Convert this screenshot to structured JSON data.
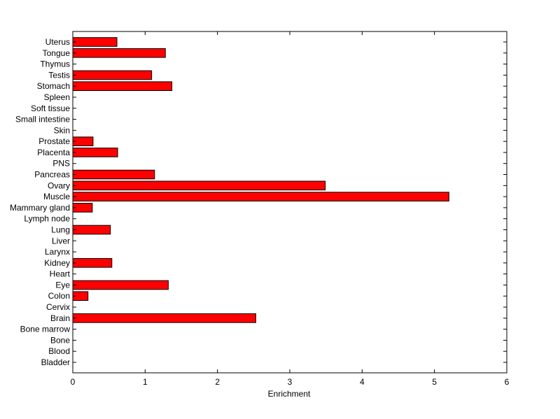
{
  "chart_data": {
    "type": "bar",
    "orientation": "horizontal",
    "title": "",
    "xlabel": "Enrichment",
    "ylabel": "",
    "xlim": [
      0,
      6
    ],
    "xticks": [
      0,
      1,
      2,
      3,
      4,
      5,
      6
    ],
    "grid": false,
    "bar_color": "#ff0000",
    "bar_edge_color": "#000000",
    "categories": [
      "Bladder",
      "Blood",
      "Bone",
      "Bone marrow",
      "Brain",
      "Cervix",
      "Colon",
      "Eye",
      "Heart",
      "Kidney",
      "Larynx",
      "Liver",
      "Lung",
      "Lymph node",
      "Mammary gland",
      "Muscle",
      "Ovary",
      "Pancreas",
      "PNS",
      "Placenta",
      "Prostate",
      "Skin",
      "Small intestine",
      "Soft tissue",
      "Spleen",
      "Stomach",
      "Testis",
      "Thymus",
      "Tongue",
      "Uterus"
    ],
    "values": [
      0,
      0,
      0,
      0,
      2.53,
      0,
      0.21,
      1.32,
      0,
      0.54,
      0,
      0,
      0.52,
      0,
      0.27,
      5.2,
      3.49,
      1.13,
      0,
      0.62,
      0.28,
      0,
      0,
      0,
      0,
      1.37,
      1.09,
      0,
      1.28,
      0.61
    ]
  }
}
